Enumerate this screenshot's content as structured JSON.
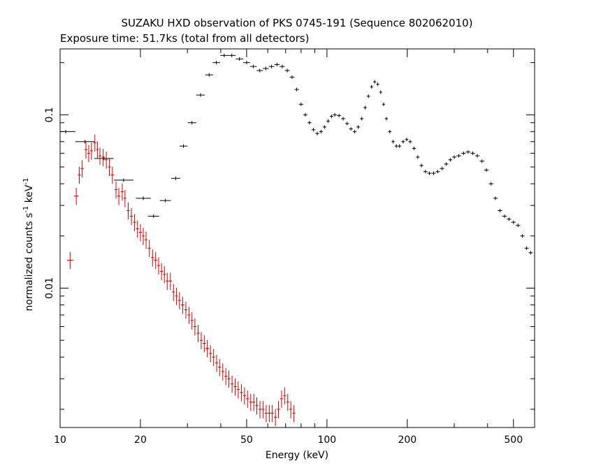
{
  "chart_data": {
    "type": "scatter",
    "title": "SUZAKU HXD observation of PKS 0745-191 (Sequence 802062010)",
    "subtitle": "Exposure time: 51.7ks (total from all detectors)",
    "xlabel": "Energy (keV)",
    "ylabel_main": "normalized counts s",
    "ylabel_sup1": "-1",
    "ylabel_mid": " keV",
    "ylabel_sup2": "-1",
    "x_scale": "log",
    "y_scale": "log",
    "xlim": [
      10,
      600
    ],
    "ylim": [
      0.00157,
      0.24
    ],
    "x_ticks": [
      10,
      20,
      50,
      100,
      200,
      500
    ],
    "x_tick_labels": [
      "10",
      "20",
      "50",
      "100",
      "200",
      "500"
    ],
    "y_ticks": [
      0.1,
      0.01
    ],
    "y_tick_labels": [
      "0.1",
      "0.01"
    ],
    "grid": false,
    "colors": {
      "GSO": "#000000",
      "PIN": "#d40000"
    },
    "series": [
      {
        "points": [
          [
            10.5,
            0.08
          ],
          [
            12.4,
            0.07
          ],
          [
            14.6,
            0.056
          ],
          [
            17.3,
            0.042
          ],
          [
            20.5,
            0.033
          ],
          [
            22.4,
            0.026
          ],
          [
            24.8,
            0.032
          ],
          [
            27.1,
            0.043
          ],
          [
            29.0,
            0.066
          ],
          [
            31.2,
            0.09
          ],
          [
            33.6,
            0.13
          ],
          [
            36.2,
            0.17
          ],
          [
            38.5,
            0.2
          ],
          [
            41.2,
            0.22
          ],
          [
            44.0,
            0.22
          ],
          [
            47.0,
            0.21
          ],
          [
            50.0,
            0.2
          ],
          [
            53.0,
            0.19
          ],
          [
            56.0,
            0.18
          ],
          [
            59.0,
            0.185
          ],
          [
            62.0,
            0.19
          ],
          [
            65.0,
            0.195
          ],
          [
            68.0,
            0.19
          ],
          [
            71.0,
            0.18
          ],
          [
            74.0,
            0.165
          ],
          [
            77.0,
            0.14
          ],
          [
            80.0,
            0.115
          ],
          [
            83.0,
            0.1
          ],
          [
            86.0,
            0.09
          ],
          [
            89.0,
            0.082
          ],
          [
            92.0,
            0.078
          ],
          [
            95.0,
            0.08
          ],
          [
            98.0,
            0.085
          ],
          [
            101.0,
            0.092
          ],
          [
            104.0,
            0.098
          ],
          [
            107.0,
            0.1
          ],
          [
            111.0,
            0.099
          ],
          [
            115.0,
            0.095
          ],
          [
            119.0,
            0.089
          ],
          [
            123.0,
            0.083
          ],
          [
            127.0,
            0.08
          ],
          [
            131.0,
            0.085
          ],
          [
            135.0,
            0.095
          ],
          [
            139.0,
            0.11
          ],
          [
            143.0,
            0.128
          ],
          [
            147.0,
            0.145
          ],
          [
            151.0,
            0.155
          ],
          [
            155.0,
            0.15
          ],
          [
            159.0,
            0.135
          ],
          [
            163.0,
            0.115
          ],
          [
            167.0,
            0.095
          ],
          [
            172.0,
            0.08
          ],
          [
            177.0,
            0.07
          ],
          [
            182.0,
            0.066
          ],
          [
            187.0,
            0.066
          ],
          [
            193.0,
            0.07
          ],
          [
            199.0,
            0.072
          ],
          [
            205.0,
            0.07
          ],
          [
            212.0,
            0.064
          ],
          [
            219.0,
            0.057
          ],
          [
            226.0,
            0.051
          ],
          [
            234.0,
            0.047
          ],
          [
            242.0,
            0.046
          ],
          [
            251.0,
            0.046
          ],
          [
            260.0,
            0.047
          ],
          [
            270.0,
            0.049
          ],
          [
            280.0,
            0.052
          ],
          [
            290.0,
            0.055
          ],
          [
            300.0,
            0.057
          ],
          [
            312.0,
            0.058
          ],
          [
            325.0,
            0.06
          ],
          [
            338.0,
            0.061
          ],
          [
            352.0,
            0.06
          ],
          [
            366.0,
            0.058
          ],
          [
            381.0,
            0.054
          ],
          [
            396.0,
            0.048
          ],
          [
            412.0,
            0.04
          ],
          [
            428.0,
            0.033
          ],
          [
            445.0,
            0.028
          ],
          [
            463.0,
            0.026
          ],
          [
            481.0,
            0.025
          ],
          [
            500.0,
            0.024
          ],
          [
            520.0,
            0.023
          ],
          [
            540.0,
            0.02
          ],
          [
            560.0,
            0.017
          ],
          [
            580.0,
            0.016
          ]
        ],
        "color": "#000000"
      },
      {
        "points": [
          [
            10.9,
            0.0145
          ],
          [
            11.5,
            0.034
          ],
          [
            11.8,
            0.045
          ],
          [
            12.1,
            0.049
          ],
          [
            12.5,
            0.063
          ],
          [
            12.8,
            0.06
          ],
          [
            13.1,
            0.062
          ],
          [
            13.5,
            0.069
          ],
          [
            13.8,
            0.063
          ],
          [
            14.1,
            0.058
          ],
          [
            14.5,
            0.057
          ],
          [
            14.9,
            0.055
          ],
          [
            15.3,
            0.05
          ],
          [
            15.7,
            0.045
          ],
          [
            16.2,
            0.037
          ],
          [
            16.6,
            0.034
          ],
          [
            17.1,
            0.036
          ],
          [
            17.5,
            0.033
          ],
          [
            18.0,
            0.028
          ],
          [
            18.5,
            0.026
          ],
          [
            19.0,
            0.024
          ],
          [
            19.5,
            0.022
          ],
          [
            20.0,
            0.021
          ],
          [
            20.5,
            0.02
          ],
          [
            21.0,
            0.019
          ],
          [
            21.6,
            0.017
          ],
          [
            22.2,
            0.015
          ],
          [
            22.8,
            0.0145
          ],
          [
            23.4,
            0.0135
          ],
          [
            24.0,
            0.0125
          ],
          [
            24.6,
            0.012
          ],
          [
            25.2,
            0.011
          ],
          [
            25.9,
            0.011
          ],
          [
            26.6,
            0.0095
          ],
          [
            27.3,
            0.009
          ],
          [
            28.0,
            0.0085
          ],
          [
            28.8,
            0.008
          ],
          [
            29.6,
            0.0075
          ],
          [
            30.4,
            0.007
          ],
          [
            31.2,
            0.0065
          ],
          [
            32.0,
            0.006
          ],
          [
            32.9,
            0.0055
          ],
          [
            33.8,
            0.005
          ],
          [
            34.7,
            0.0048
          ],
          [
            35.6,
            0.0045
          ],
          [
            36.6,
            0.0042
          ],
          [
            37.6,
            0.004
          ],
          [
            38.6,
            0.0037
          ],
          [
            39.6,
            0.0035
          ],
          [
            40.7,
            0.0033
          ],
          [
            41.8,
            0.0031
          ],
          [
            42.9,
            0.003
          ],
          [
            44.1,
            0.0028
          ],
          [
            45.3,
            0.0027
          ],
          [
            46.5,
            0.0026
          ],
          [
            47.8,
            0.0025
          ],
          [
            49.1,
            0.0024
          ],
          [
            50.4,
            0.0023
          ],
          [
            51.8,
            0.0022
          ],
          [
            53.2,
            0.0022
          ],
          [
            54.6,
            0.0021
          ],
          [
            56.1,
            0.002
          ],
          [
            57.6,
            0.002
          ],
          [
            59.2,
            0.0019
          ],
          [
            60.8,
            0.0019
          ],
          [
            62.4,
            0.0019
          ],
          [
            64.1,
            0.0018
          ],
          [
            65.8,
            0.002
          ],
          [
            67.6,
            0.0023
          ],
          [
            69.4,
            0.0024
          ],
          [
            71.3,
            0.0022
          ],
          [
            73.2,
            0.002
          ],
          [
            75.2,
            0.0019
          ]
        ],
        "color": "#d40000"
      }
    ]
  }
}
